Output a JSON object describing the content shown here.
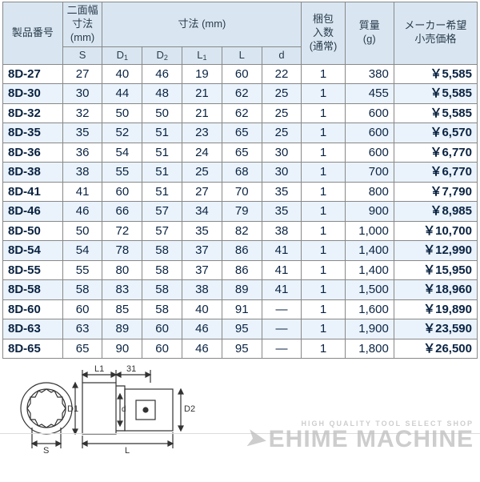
{
  "headers": {
    "product_no": "製品番号",
    "width_dim": "二面幅\n寸法\n(mm)",
    "dim": "寸法 (mm)",
    "pack": "梱包\n入数\n(通常)",
    "mass": "質量\n(g)",
    "price": "メーカー希望\n小売価格",
    "S": "S",
    "D1": "D",
    "D1s": "1",
    "D2": "D",
    "D2s": "2",
    "L1": "L",
    "L1s": "1",
    "L": "L",
    "d": "d"
  },
  "rows": [
    {
      "pn": "8D-27",
      "S": "27",
      "D1": "40",
      "D2": "46",
      "L1": "19",
      "L": "60",
      "d": "22",
      "pack": "1",
      "mass": "380",
      "price": "￥5,585"
    },
    {
      "pn": "8D-30",
      "S": "30",
      "D1": "44",
      "D2": "48",
      "L1": "21",
      "L": "62",
      "d": "25",
      "pack": "1",
      "mass": "455",
      "price": "￥5,585"
    },
    {
      "pn": "8D-32",
      "S": "32",
      "D1": "50",
      "D2": "50",
      "L1": "21",
      "L": "62",
      "d": "25",
      "pack": "1",
      "mass": "600",
      "price": "￥5,585"
    },
    {
      "pn": "8D-35",
      "S": "35",
      "D1": "52",
      "D2": "51",
      "L1": "23",
      "L": "65",
      "d": "25",
      "pack": "1",
      "mass": "600",
      "price": "￥6,570"
    },
    {
      "pn": "8D-36",
      "S": "36",
      "D1": "54",
      "D2": "51",
      "L1": "24",
      "L": "65",
      "d": "30",
      "pack": "1",
      "mass": "600",
      "price": "￥6,770"
    },
    {
      "pn": "8D-38",
      "S": "38",
      "D1": "55",
      "D2": "51",
      "L1": "25",
      "L": "68",
      "d": "30",
      "pack": "1",
      "mass": "700",
      "price": "￥6,770"
    },
    {
      "pn": "8D-41",
      "S": "41",
      "D1": "60",
      "D2": "51",
      "L1": "27",
      "L": "70",
      "d": "35",
      "pack": "1",
      "mass": "800",
      "price": "￥7,790"
    },
    {
      "pn": "8D-46",
      "S": "46",
      "D1": "66",
      "D2": "57",
      "L1": "34",
      "L": "79",
      "d": "35",
      "pack": "1",
      "mass": "900",
      "price": "￥8,985"
    },
    {
      "pn": "8D-50",
      "S": "50",
      "D1": "72",
      "D2": "57",
      "L1": "35",
      "L": "82",
      "d": "38",
      "pack": "1",
      "mass": "1,000",
      "price": "￥10,700"
    },
    {
      "pn": "8D-54",
      "S": "54",
      "D1": "78",
      "D2": "58",
      "L1": "37",
      "L": "86",
      "d": "41",
      "pack": "1",
      "mass": "1,400",
      "price": "￥12,990"
    },
    {
      "pn": "8D-55",
      "S": "55",
      "D1": "80",
      "D2": "58",
      "L1": "37",
      "L": "86",
      "d": "41",
      "pack": "1",
      "mass": "1,400",
      "price": "￥15,950"
    },
    {
      "pn": "8D-58",
      "S": "58",
      "D1": "83",
      "D2": "58",
      "L1": "38",
      "L": "89",
      "d": "41",
      "pack": "1",
      "mass": "1,500",
      "price": "￥18,960"
    },
    {
      "pn": "8D-60",
      "S": "60",
      "D1": "85",
      "D2": "58",
      "L1": "40",
      "L": "91",
      "d": "—",
      "pack": "1",
      "mass": "1,600",
      "price": "￥19,890"
    },
    {
      "pn": "8D-63",
      "S": "63",
      "D1": "89",
      "D2": "60",
      "L1": "46",
      "L": "95",
      "d": "—",
      "pack": "1",
      "mass": "1,900",
      "price": "￥23,590"
    },
    {
      "pn": "8D-65",
      "S": "65",
      "D1": "90",
      "D2": "60",
      "L1": "46",
      "L": "95",
      "d": "—",
      "pack": "1",
      "mass": "1,800",
      "price": "￥26,500"
    }
  ],
  "diagram": {
    "labels": {
      "L1": "L1",
      "thirtyone": "31",
      "D1": "D1",
      "d": "d",
      "D2": "D2",
      "S": "S",
      "L": "L"
    }
  },
  "watermark": {
    "small": "HIGH QUALITY TOOL SELECT SHOP",
    "big": "EHIME MACHINE"
  },
  "colors": {
    "header_bg": "#d9e6f2",
    "row_even_bg": "#eaf3fb",
    "border": "#888888",
    "text_dark": "#0a2342",
    "watermark": "#bdbdbd"
  }
}
